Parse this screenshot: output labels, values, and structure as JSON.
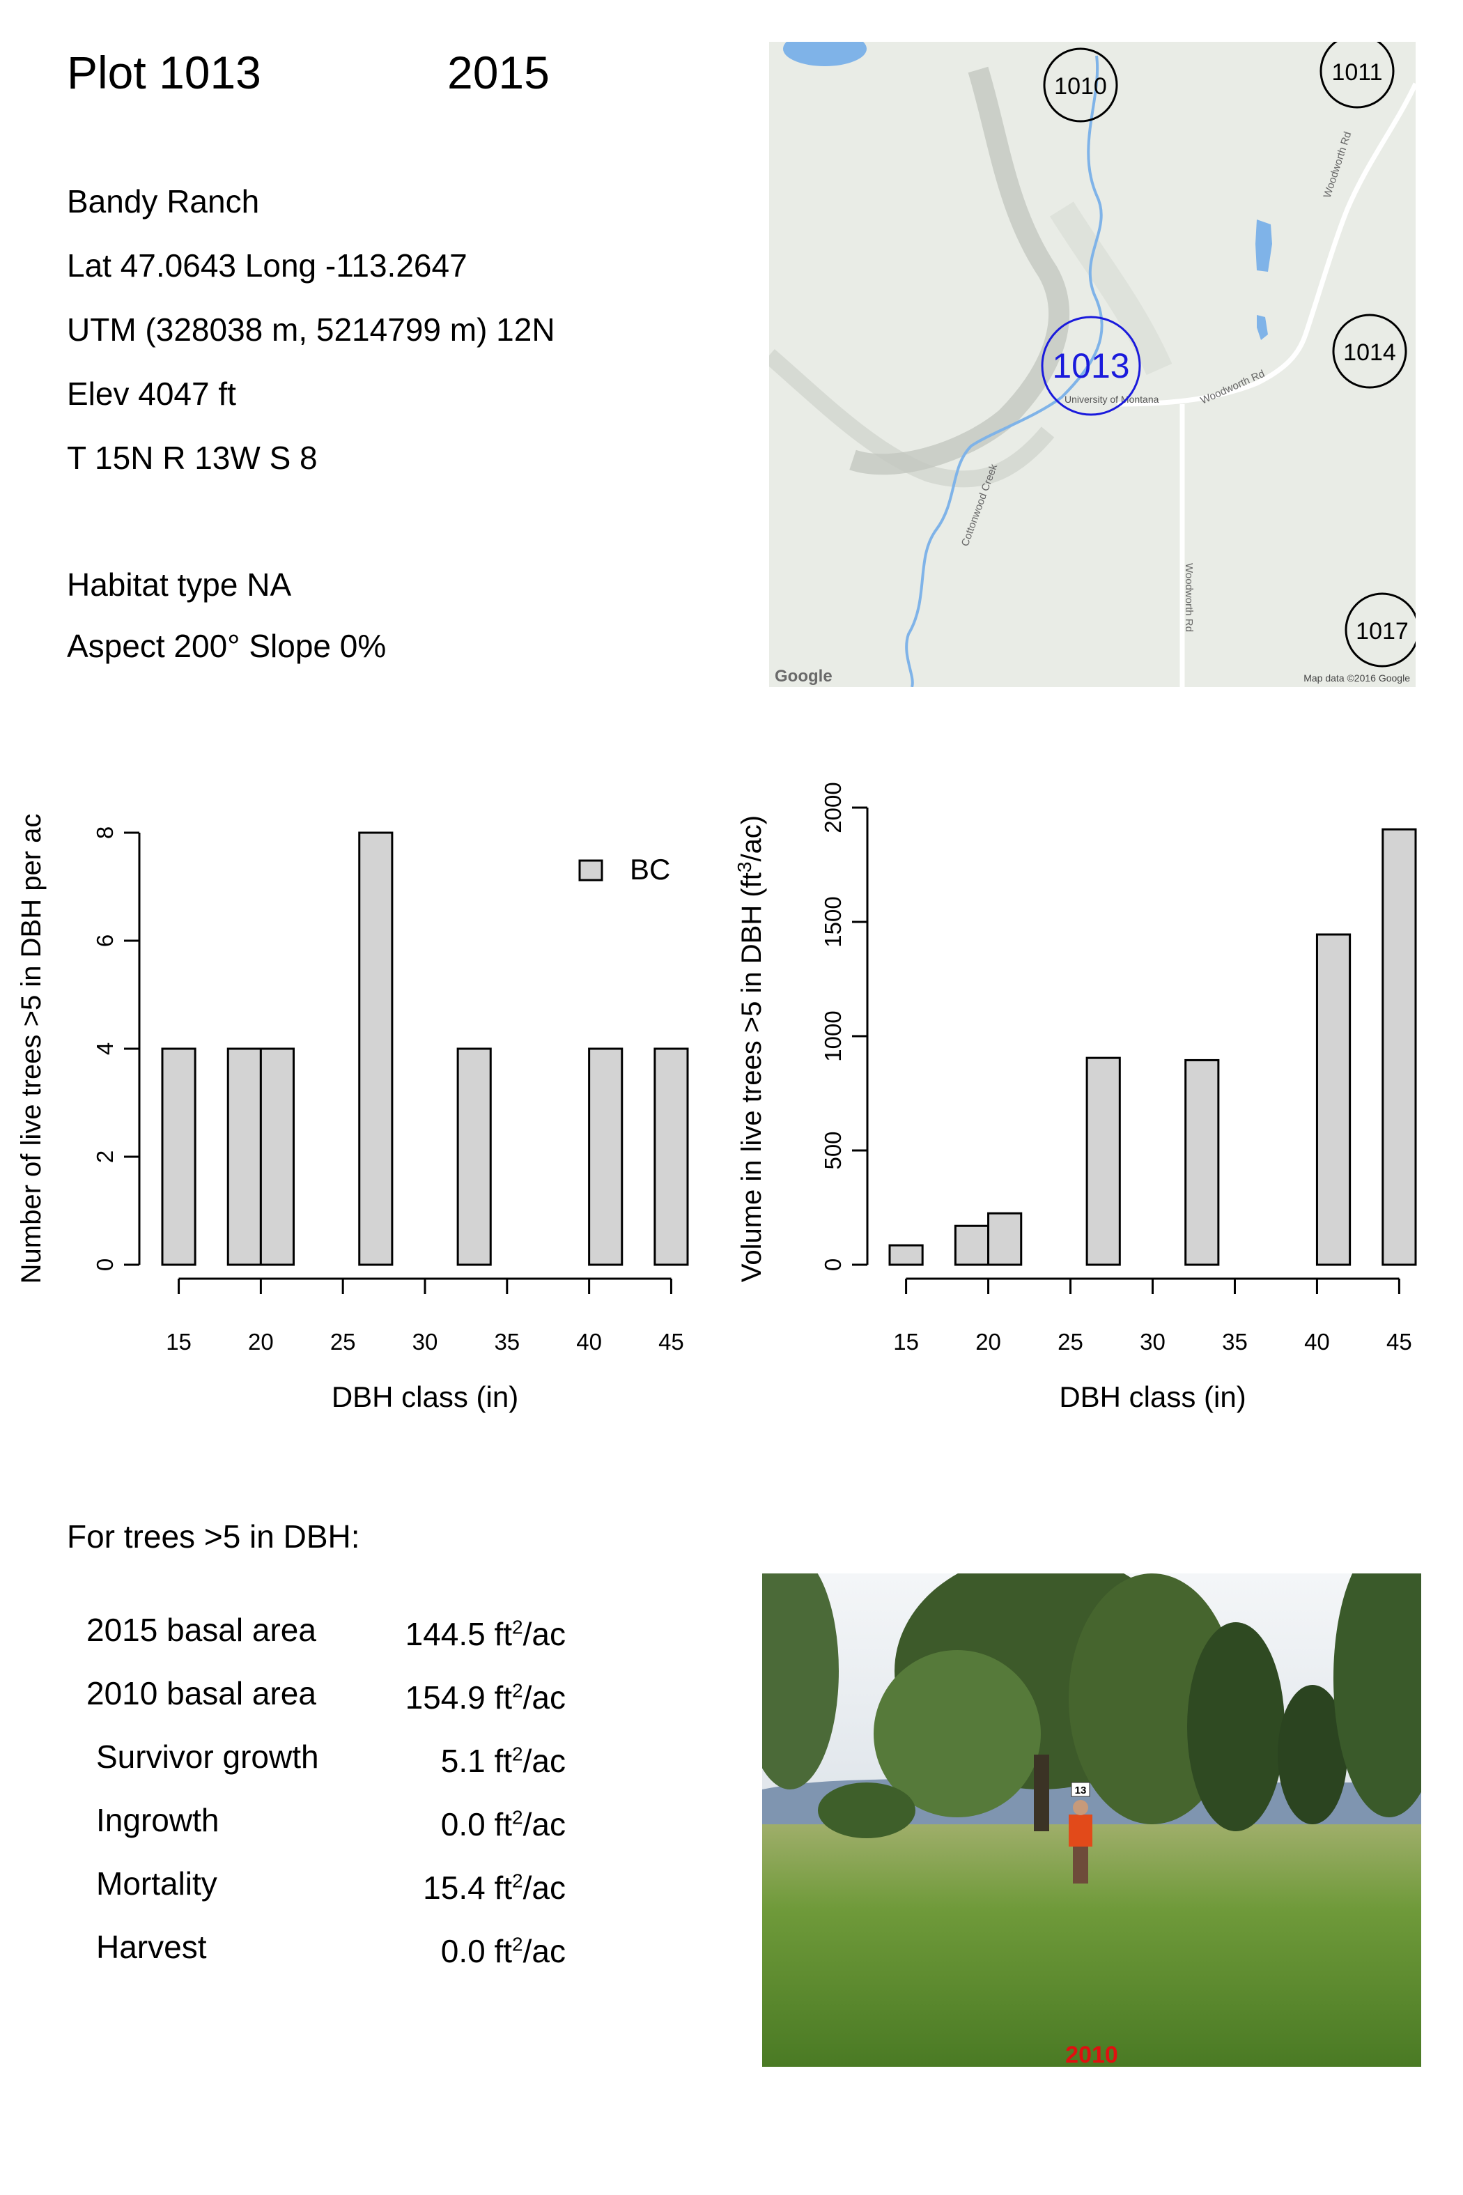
{
  "header": {
    "plot": "Plot 1013",
    "year": "2015"
  },
  "info": {
    "location": "Bandy Ranch",
    "latlong": "Lat 47.0643 Long -113.2647",
    "utm": "UTM (328038 m, 5214799 m)  12N",
    "elev": "Elev 4047 ft",
    "trs": "T 15N  R 13W  S 8",
    "habitat": "Habitat type NA",
    "aspect_slope": "Aspect 200° Slope 0%"
  },
  "map": {
    "plots": [
      {
        "label": "1010",
        "current": false
      },
      {
        "label": "1011",
        "current": false
      },
      {
        "label": "1013",
        "current": true
      },
      {
        "label": "1014",
        "current": false
      },
      {
        "label": "1017",
        "current": false
      }
    ],
    "road_labels": [
      "Woodworth Rd",
      "Woodworth Rd",
      "Woodworth Rd"
    ],
    "creek_labels": [
      "Cottonwood Creek"
    ],
    "place_label": "University of Montana",
    "google_logo": "Google",
    "attribution": "Map data ©2016 Google",
    "colors": {
      "land": "#e9ece6",
      "water": "#7fb3e8",
      "road": "#ffffff",
      "current_plot": "#1a1adc"
    }
  },
  "chart_data": [
    {
      "type": "bar",
      "ylabel": "Number of live trees >5 in DBH per ac",
      "xlabel": "DBH class (in)",
      "x": [
        15,
        19,
        21,
        27,
        33,
        41,
        45
      ],
      "values": [
        4,
        4,
        4,
        8,
        4,
        4,
        4
      ],
      "ylim": [
        0,
        8
      ],
      "yticks": [
        0,
        2,
        4,
        6,
        8
      ],
      "xticks": [
        15,
        20,
        25,
        30,
        35,
        40,
        45
      ],
      "legend": {
        "label": "BC",
        "position": "top-right"
      },
      "bar_color": "#d3d3d3"
    },
    {
      "type": "bar",
      "ylabel": "Volume in live trees >5 in DBH (ft³/ac)",
      "xlabel": "DBH class (in)",
      "x": [
        15,
        19,
        21,
        27,
        33,
        41,
        45
      ],
      "values": [
        85,
        170,
        225,
        905,
        895,
        1445,
        1905
      ],
      "ylim": [
        0,
        2000
      ],
      "yticks": [
        0,
        500,
        1000,
        1500,
        2000
      ],
      "xticks": [
        15,
        20,
        25,
        30,
        35,
        40,
        45
      ],
      "bar_color": "#d3d3d3"
    }
  ],
  "summary": {
    "heading": "For trees >5 in DBH:",
    "rows": [
      {
        "label": "2015 basal area",
        "value": "144.5 ft",
        "unit_sup": "2",
        "unit_tail": "/ac"
      },
      {
        "label": "2010 basal area",
        "value": "154.9 ft",
        "unit_sup": "2",
        "unit_tail": "/ac"
      },
      {
        "label": "Survivor growth",
        "value": "5.1 ft",
        "unit_sup": "2",
        "unit_tail": "/ac"
      },
      {
        "label": "Ingrowth",
        "value": "0.0 ft",
        "unit_sup": "2",
        "unit_tail": "/ac"
      },
      {
        "label": "Mortality",
        "value": "15.4 ft",
        "unit_sup": "2",
        "unit_tail": "/ac"
      },
      {
        "label": "Harvest",
        "value": "0.0 ft",
        "unit_sup": "2",
        "unit_tail": "/ac"
      }
    ]
  },
  "photo": {
    "stamp": "2010",
    "marker": "13",
    "colors": {
      "sky": "#d8dde4",
      "grass": "#5d8a2e",
      "stamp": "#e01010"
    }
  }
}
